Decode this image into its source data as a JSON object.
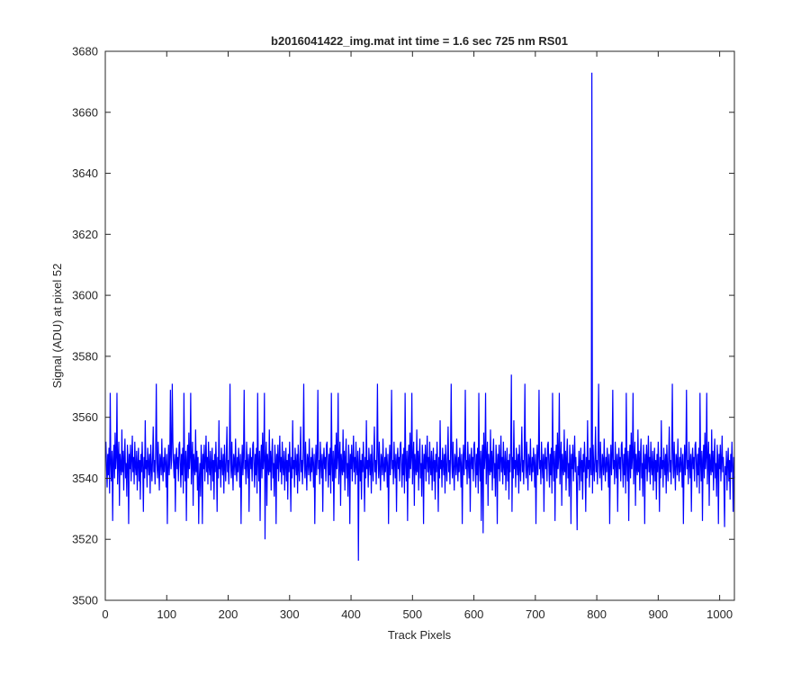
{
  "chart_data": {
    "type": "line",
    "title": "b2016041422_img.mat int time = 1.6 sec  725 nm RS01",
    "xlabel": "Track Pixels",
    "ylabel": "Signal (ADU) at pixel 52",
    "xlim": [
      0,
      1024
    ],
    "ylim": [
      3500,
      3680
    ],
    "xticks": [
      0,
      100,
      200,
      300,
      400,
      500,
      600,
      700,
      800,
      900,
      1000
    ],
    "yticks": [
      3500,
      3520,
      3540,
      3560,
      3580,
      3600,
      3620,
      3640,
      3660,
      3680
    ],
    "grid": false,
    "legend": "none",
    "series": [
      {
        "color": "#0000ff",
        "x_start": 1,
        "x_step": 1,
        "baseline": 3547,
        "values": [
          3552,
          3544,
          3537,
          3548,
          3541,
          3550,
          3535,
          3568,
          3545,
          3539,
          3549,
          3526,
          3546,
          3551,
          3540,
          3555,
          3543,
          3547,
          3568,
          3538,
          3546,
          3552,
          3531,
          3548,
          3544,
          3541,
          3556,
          3542,
          3549,
          3536,
          3547,
          3553,
          3540,
          3545,
          3534,
          3551,
          3546,
          3525,
          3548,
          3543,
          3551,
          3539,
          3546,
          3554,
          3542,
          3547,
          3538,
          3552,
          3544,
          3541,
          3549,
          3536,
          3545,
          3550,
          3539,
          3546,
          3533,
          3548,
          3542,
          3552,
          3544,
          3529,
          3547,
          3540,
          3559,
          3543,
          3546,
          3537,
          3550,
          3545,
          3541,
          3548,
          3535,
          3551,
          3544,
          3539,
          3547,
          3557,
          3542,
          3546,
          3538,
          3549,
          3571,
          3545,
          3540,
          3552,
          3543,
          3536,
          3548,
          3546,
          3541,
          3553,
          3544,
          3539,
          3547,
          3542,
          3550,
          3545,
          3537,
          3548,
          3525,
          3544,
          3551,
          3541,
          3547,
          3569,
          3543,
          3546,
          3538,
          3552,
          3545,
          3540,
          3548,
          3529,
          3546,
          3550,
          3543,
          3547,
          3539,
          3551
        ],
        "anomalies": [
          {
            "x": 109,
            "value": 3571
          },
          {
            "x": 152,
            "value": 3525
          },
          {
            "x": 260,
            "value": 3520
          },
          {
            "x": 412,
            "value": 3513
          },
          {
            "x": 615,
            "value": 3522
          },
          {
            "x": 661,
            "value": 3574
          },
          {
            "x": 768,
            "value": 3523
          },
          {
            "x": 792,
            "value": 3673
          },
          {
            "x": 1008,
            "value": 3524
          }
        ]
      }
    ]
  }
}
